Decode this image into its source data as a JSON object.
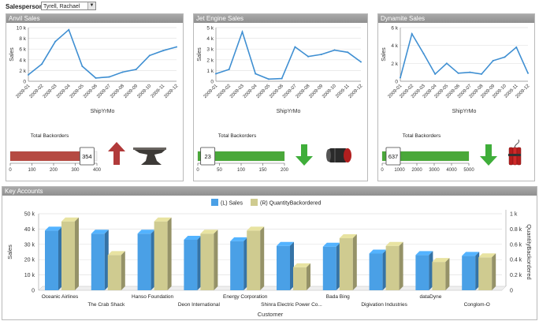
{
  "header": {
    "salesperson_label": "Salesperson",
    "salesperson_value": "Tyrell, Rachael"
  },
  "panels": [
    {
      "title": "Anvil Sales",
      "chart_data": {
        "type": "line",
        "ylabel": "Sales",
        "xlabel": "ShipYrMo",
        "categories": [
          "2009-01",
          "2009-02",
          "2009-03",
          "2009-04",
          "2009-05",
          "2009-06",
          "2009-07",
          "2009-08",
          "2009-09",
          "2009-10",
          "2009-11",
          "2009-12"
        ],
        "yticks": [
          "0",
          "2 k",
          "4 k",
          "6 k",
          "8 k",
          "10 k"
        ],
        "ylim": [
          0,
          10000
        ],
        "values": [
          1200,
          3200,
          7400,
          9600,
          2800,
          600,
          800,
          1700,
          2200,
          4800,
          5700,
          6400
        ]
      },
      "backorders": {
        "title": "Total Backorders",
        "value": "354",
        "max": 400,
        "fraction": 0.885,
        "ticks": [
          "0",
          "100",
          "200",
          "300",
          "400"
        ],
        "bar_color": "#b54a42",
        "trend": "up",
        "arrow_color": "#b13a3a",
        "product_icon": "anvil-icon"
      }
    },
    {
      "title": "Jet Engine Sales",
      "chart_data": {
        "type": "line",
        "ylabel": "Sales",
        "xlabel": "ShipYrMo",
        "categories": [
          "2009-01",
          "2009-02",
          "2009-03",
          "2009-04",
          "2009-05",
          "2009-06",
          "2009-07",
          "2009-08",
          "2009-09",
          "2009-10",
          "2009-11",
          "2009-12"
        ],
        "yticks": [
          "0",
          "1 k",
          "2 k",
          "3 k",
          "4 k",
          "5 k"
        ],
        "ylim": [
          0,
          5000
        ],
        "values": [
          700,
          1100,
          4600,
          700,
          200,
          250,
          3200,
          2300,
          2500,
          2900,
          2700,
          1800
        ]
      },
      "backorders": {
        "title": "Total Backorders",
        "value": "23",
        "max": 200,
        "fraction": 0.115,
        "ticks": [
          "0",
          "50",
          "100",
          "150",
          "200"
        ],
        "bar_color": "#4aa83a",
        "trend": "down",
        "arrow_color": "#3fae3a",
        "product_icon": "jet-engine-icon"
      }
    },
    {
      "title": "Dynamite Sales",
      "chart_data": {
        "type": "line",
        "ylabel": "Sales",
        "xlabel": "ShipYrMo",
        "categories": [
          "2009-01",
          "2009-02",
          "2009-03",
          "2009-04",
          "2009-05",
          "2009-06",
          "2009-07",
          "2009-08",
          "2009-09",
          "2009-10",
          "2009-11",
          "2009-12"
        ],
        "yticks": [
          "0",
          "2 k",
          "4 k",
          "6 k"
        ],
        "ylim": [
          0,
          6000
        ],
        "values": [
          400,
          5300,
          3100,
          800,
          2000,
          900,
          1000,
          800,
          2300,
          2700,
          3800,
          900
        ]
      },
      "backorders": {
        "title": "Total Backorders",
        "value": "637",
        "max": 5000,
        "fraction": 0.127,
        "ticks": [
          "0",
          "1000",
          "2000",
          "3000",
          "4000",
          "5000"
        ],
        "bar_color": "#4aa83a",
        "trend": "down",
        "arrow_color": "#3fae3a",
        "product_icon": "dynamite-icon"
      }
    }
  ],
  "key_accounts": {
    "title": "Key Accounts",
    "chart_data": {
      "type": "bar",
      "xlabel": "Customer",
      "ylabel_left": "Sales",
      "ylabel_right": "QuantityBackordered",
      "legend": [
        "(L) Sales",
        "(R) QuantityBackordered"
      ],
      "left_ticks": [
        "0",
        "10 k",
        "20 k",
        "30 k",
        "40 k",
        "50 k"
      ],
      "left_max": 50000,
      "right_ticks": [
        "0",
        "0.2 k",
        "0.4 k",
        "0.6 k",
        "0.8 k",
        "1 k"
      ],
      "right_max": 1000,
      "categories": [
        "Oceanic Airlines",
        "The Crab Shack",
        "Hanso Foundation",
        "Deon International",
        "Energy Corporation",
        "Shinra Electric Power Co...",
        "Bada Bing",
        "Digivation Industries",
        "dataDyne",
        "Conglom-O"
      ],
      "series": [
        {
          "name": "(L) Sales",
          "values": [
            39000,
            37000,
            37000,
            33000,
            32000,
            29000,
            28500,
            24000,
            23000,
            22500
          ]
        },
        {
          "name": "(R) QuantityBackordered",
          "values": [
            900,
            460,
            900,
            740,
            780,
            300,
            680,
            580,
            370,
            430
          ]
        }
      ],
      "colors": [
        "#4aa0e6",
        "#cfcb90"
      ]
    }
  }
}
